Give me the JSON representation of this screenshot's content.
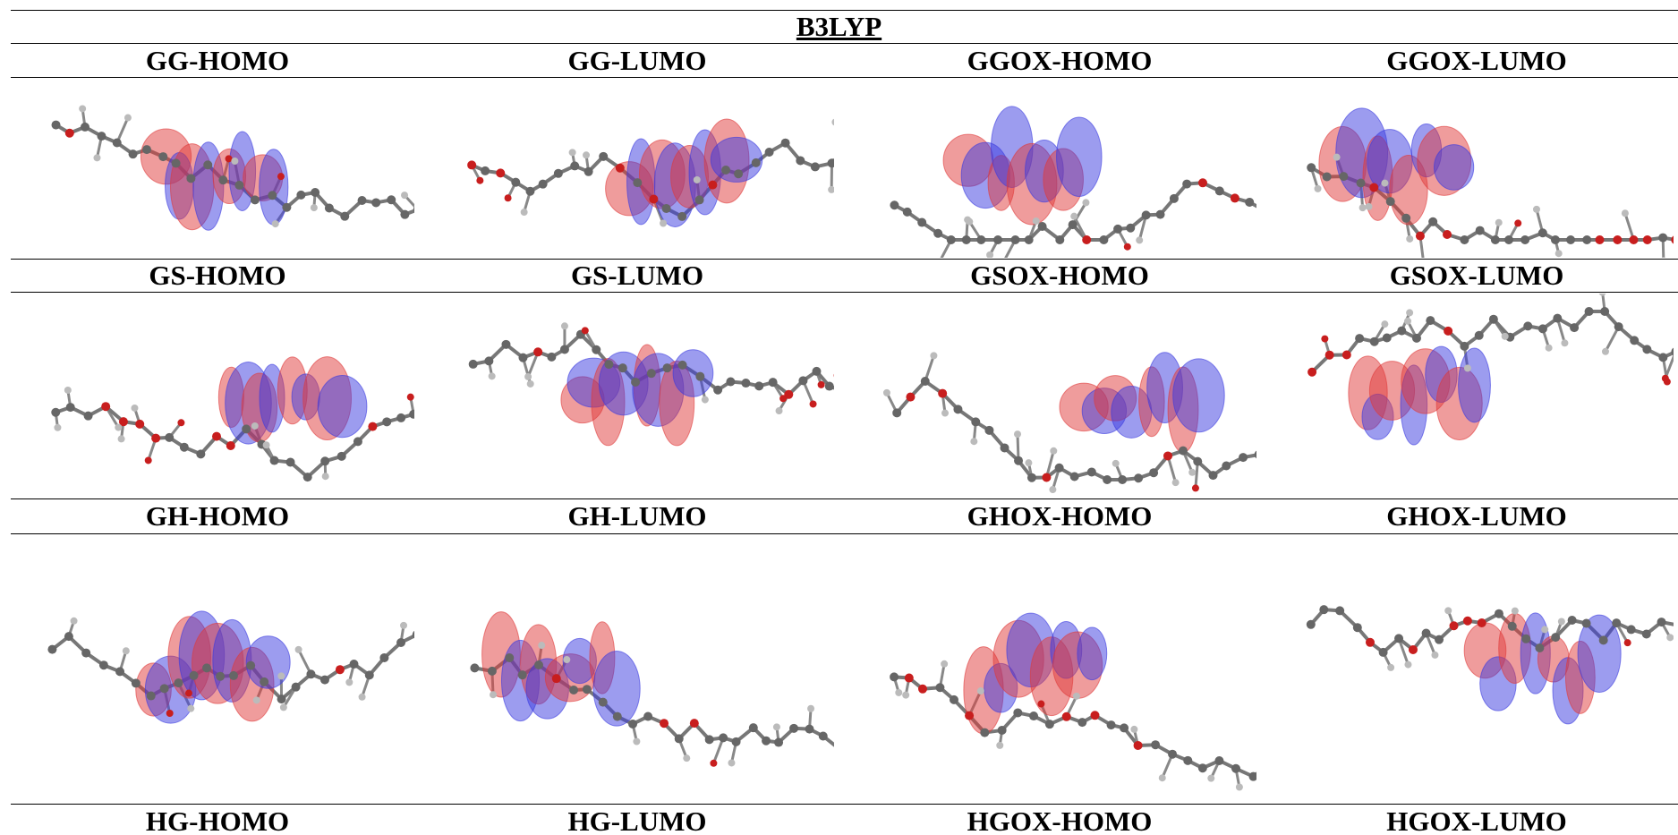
{
  "title": "B3LYP",
  "rows": [
    {
      "labels": [
        "GG-HOMO",
        "GG-LUMO",
        "GGOX-HOMO",
        "GGOX-LUMO"
      ]
    },
    {
      "labels": [
        "GS-HOMO",
        "GS-LUMO",
        "GSOX-HOMO",
        "GSOX-LUMO"
      ]
    },
    {
      "labels": [
        "GH-HOMO",
        "GH-LUMO",
        "GHOX-HOMO",
        "GHOX-LUMO"
      ]
    },
    {
      "labels": [
        "HG-HOMO",
        "HG-LUMO",
        "HGOX-HOMO",
        "HGOX-LUMO"
      ]
    }
  ]
}
